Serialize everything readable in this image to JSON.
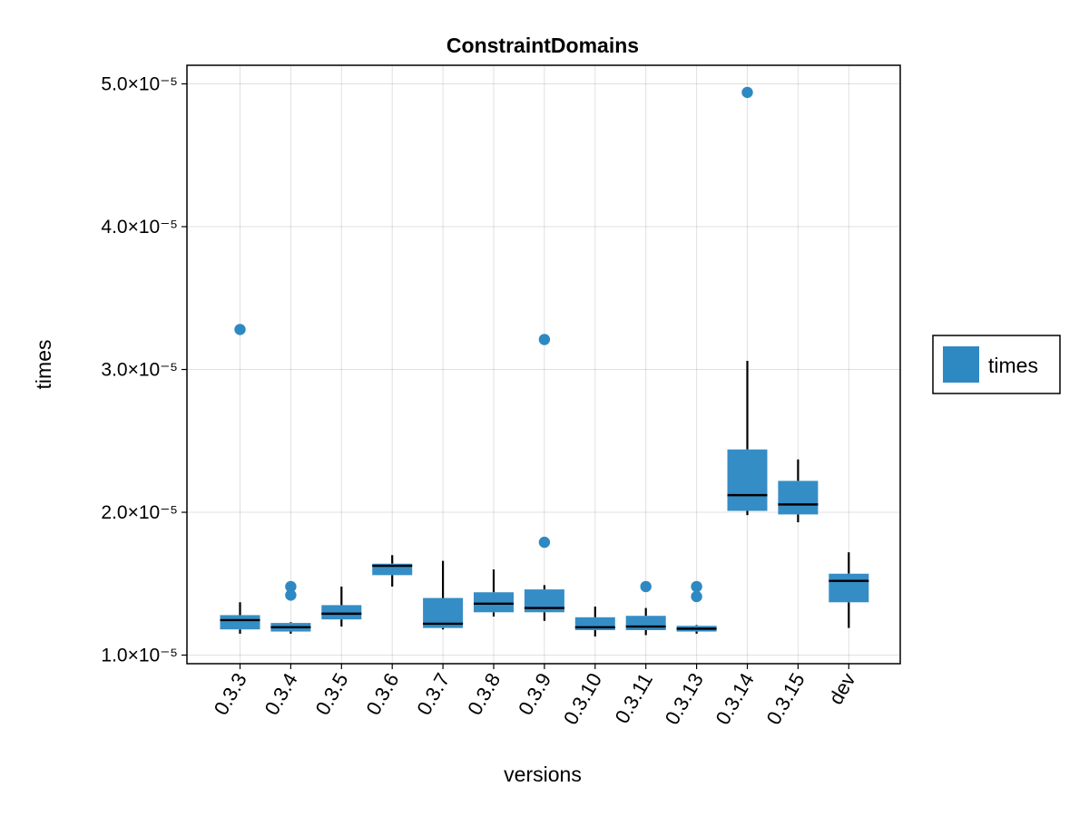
{
  "chart_data": {
    "type": "boxplot",
    "title": "ConstraintDomains",
    "xlabel": "versions",
    "ylabel": "times",
    "categories": [
      "0.3.3",
      "0.3.4",
      "0.3.5",
      "0.3.6",
      "0.3.7",
      "0.3.8",
      "0.3.9",
      "0.3.10",
      "0.3.11",
      "0.3.13",
      "0.3.14",
      "0.3.15",
      "dev"
    ],
    "y_tick_labels": [
      "1.0×10⁻⁵",
      "2.0×10⁻⁵",
      "3.0×10⁻⁵",
      "4.0×10⁻⁵",
      "5.0×10⁻⁵"
    ],
    "y_ticks": [
      1e-05,
      2e-05,
      3e-05,
      4e-05,
      5e-05
    ],
    "ylim": [
      9.4e-06,
      5.13e-05
    ],
    "grid": true,
    "legend": {
      "position": "right",
      "entries": [
        {
          "label": "times",
          "color": "#2e89c3"
        }
      ]
    },
    "color": "#2e89c3",
    "series": [
      {
        "name": "times",
        "boxes": [
          {
            "category": "0.3.3",
            "whisker_low": 1.15e-05,
            "q1": 1.18e-05,
            "median": 1.245e-05,
            "q3": 1.28e-05,
            "whisker_high": 1.37e-05,
            "outliers": [
              3.28e-05
            ]
          },
          {
            "category": "0.3.4",
            "whisker_low": 1.15e-05,
            "q1": 1.165e-05,
            "median": 1.195e-05,
            "q3": 1.225e-05,
            "whisker_high": 1.23e-05,
            "outliers": [
              1.48e-05,
              1.42e-05
            ]
          },
          {
            "category": "0.3.5",
            "whisker_low": 1.2e-05,
            "q1": 1.25e-05,
            "median": 1.29e-05,
            "q3": 1.35e-05,
            "whisker_high": 1.48e-05,
            "outliers": []
          },
          {
            "category": "0.3.6",
            "whisker_low": 1.48e-05,
            "q1": 1.56e-05,
            "median": 1.625e-05,
            "q3": 1.64e-05,
            "whisker_high": 1.7e-05,
            "outliers": []
          },
          {
            "category": "0.3.7",
            "whisker_low": 1.18e-05,
            "q1": 1.19e-05,
            "median": 1.22e-05,
            "q3": 1.4e-05,
            "whisker_high": 1.66e-05,
            "outliers": []
          },
          {
            "category": "0.3.8",
            "whisker_low": 1.27e-05,
            "q1": 1.3e-05,
            "median": 1.36e-05,
            "q3": 1.44e-05,
            "whisker_high": 1.6e-05,
            "outliers": []
          },
          {
            "category": "0.3.9",
            "whisker_low": 1.24e-05,
            "q1": 1.3e-05,
            "median": 1.33e-05,
            "q3": 1.46e-05,
            "whisker_high": 1.49e-05,
            "outliers": [
              3.21e-05,
              1.79e-05
            ]
          },
          {
            "category": "0.3.10",
            "whisker_low": 1.13e-05,
            "q1": 1.175e-05,
            "median": 1.195e-05,
            "q3": 1.265e-05,
            "whisker_high": 1.34e-05,
            "outliers": []
          },
          {
            "category": "0.3.11",
            "whisker_low": 1.14e-05,
            "q1": 1.175e-05,
            "median": 1.2e-05,
            "q3": 1.275e-05,
            "whisker_high": 1.33e-05,
            "outliers": [
              1.48e-05
            ]
          },
          {
            "category": "0.3.13",
            "whisker_low": 1.15e-05,
            "q1": 1.165e-05,
            "median": 1.185e-05,
            "q3": 1.205e-05,
            "whisker_high": 1.21e-05,
            "outliers": [
              1.48e-05,
              1.41e-05
            ]
          },
          {
            "category": "0.3.14",
            "whisker_low": 1.98e-05,
            "q1": 2.01e-05,
            "median": 2.12e-05,
            "q3": 2.44e-05,
            "whisker_high": 3.06e-05,
            "outliers": [
              4.94e-05
            ]
          },
          {
            "category": "0.3.15",
            "whisker_low": 1.93e-05,
            "q1": 1.985e-05,
            "median": 2.055e-05,
            "q3": 2.22e-05,
            "whisker_high": 2.37e-05,
            "outliers": []
          },
          {
            "category": "dev",
            "whisker_low": 1.19e-05,
            "q1": 1.37e-05,
            "median": 1.52e-05,
            "q3": 1.57e-05,
            "whisker_high": 1.72e-05,
            "outliers": []
          }
        ]
      }
    ]
  }
}
